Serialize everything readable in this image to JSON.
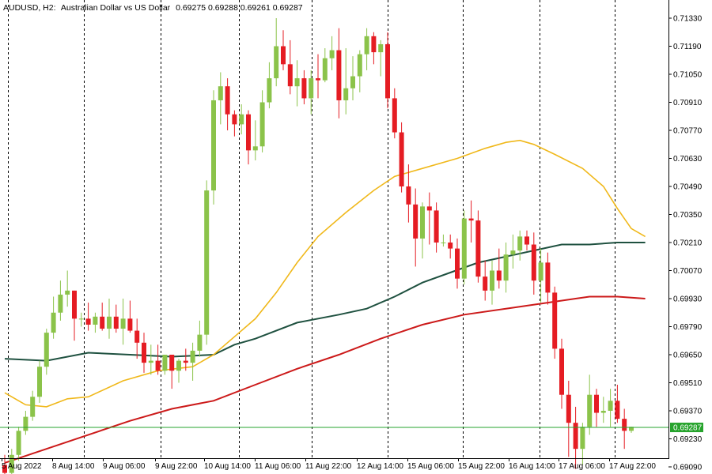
{
  "header": {
    "symbol": "AUDUSD, H2:",
    "description": "Australian Dollar vs US Dollar",
    "ohlc": "0.69275 0.69288 0.69261 0.69287"
  },
  "current_price": "0.69287",
  "colors": {
    "up": "#8bc34a",
    "down": "#e51c23",
    "ma_fast": "#f0b81a",
    "ma_mid": "#1f5140",
    "ma_slow": "#cc1a1a",
    "price_line": "#26a32c",
    "grid": "#000000"
  },
  "chart_data": {
    "type": "candlestick",
    "instrument": "AUDUSD",
    "timeframe": "H2",
    "ylim": [
      0.6902,
      0.7139
    ],
    "y_ticks": [
      "0.71330",
      "0.71190",
      "0.71050",
      "0.70910",
      "0.70770",
      "0.70630",
      "0.70490",
      "0.70350",
      "0.70210",
      "0.70070",
      "0.69930",
      "0.69790",
      "0.69650",
      "0.69510",
      "0.69370",
      "0.69230",
      "0.69090"
    ],
    "x_labels": [
      "5 Aug 2022",
      "8 Aug 14:00",
      "9 Aug 06:00",
      "9 Aug 22:00",
      "10 Aug 14:00",
      "11 Aug 06:00",
      "11 Aug 22:00",
      "12 Aug 14:00",
      "15 Aug 06:00",
      "15 Aug 22:00",
      "16 Aug 14:00",
      "17 Aug 06:00",
      "17 Aug 22:00"
    ],
    "candles": [
      [
        0.691,
        0.6915,
        0.6903,
        0.6906
      ],
      [
        0.6906,
        0.6918,
        0.6904,
        0.6915
      ],
      [
        0.6915,
        0.6929,
        0.6912,
        0.6927
      ],
      [
        0.6927,
        0.6937,
        0.6925,
        0.6934
      ],
      [
        0.6934,
        0.6947,
        0.6932,
        0.6944
      ],
      [
        0.6944,
        0.6962,
        0.6941,
        0.6959
      ],
      [
        0.6959,
        0.6978,
        0.6955,
        0.6976
      ],
      [
        0.6976,
        0.6994,
        0.6973,
        0.6986
      ],
      [
        0.6986,
        0.7002,
        0.6982,
        0.6995
      ],
      [
        0.6995,
        0.7007,
        0.6989,
        0.6997
      ],
      [
        0.6997,
        0.6997,
        0.6972,
        0.6983
      ],
      [
        0.6983,
        0.6986,
        0.6979,
        0.6983
      ],
      [
        0.6983,
        0.6991,
        0.6977,
        0.698
      ],
      [
        0.698,
        0.6986,
        0.6976,
        0.6984
      ],
      [
        0.6984,
        0.6991,
        0.6977,
        0.6978
      ],
      [
        0.6978,
        0.6993,
        0.6973,
        0.6984
      ],
      [
        0.6984,
        0.699,
        0.6976,
        0.6978
      ],
      [
        0.6978,
        0.6993,
        0.697,
        0.6983
      ],
      [
        0.6983,
        0.6992,
        0.6976,
        0.6977
      ],
      [
        0.6977,
        0.6983,
        0.6963,
        0.6971
      ],
      [
        0.6971,
        0.6976,
        0.6956,
        0.6961
      ],
      [
        0.6961,
        0.697,
        0.6955,
        0.6962
      ],
      [
        0.6962,
        0.697,
        0.6955,
        0.6957
      ],
      [
        0.6957,
        0.6965,
        0.6955,
        0.6965
      ],
      [
        0.6965,
        0.6965,
        0.6948,
        0.6957
      ],
      [
        0.6957,
        0.6963,
        0.6951,
        0.6962
      ],
      [
        0.6962,
        0.6968,
        0.6957,
        0.6961
      ],
      [
        0.6961,
        0.6971,
        0.6952,
        0.6967
      ],
      [
        0.6967,
        0.6982,
        0.6964,
        0.6975
      ],
      [
        0.6975,
        0.7052,
        0.697,
        0.7047
      ],
      [
        0.7047,
        0.7097,
        0.704,
        0.7092
      ],
      [
        0.7092,
        0.7106,
        0.708,
        0.7099
      ],
      [
        0.7099,
        0.7103,
        0.7077,
        0.7085
      ],
      [
        0.7085,
        0.7087,
        0.7074,
        0.708
      ],
      [
        0.708,
        0.709,
        0.7075,
        0.7085
      ],
      [
        0.7085,
        0.7087,
        0.706,
        0.7067
      ],
      [
        0.7067,
        0.7082,
        0.7062,
        0.7069
      ],
      [
        0.7069,
        0.7097,
        0.7066,
        0.7091
      ],
      [
        0.7091,
        0.7111,
        0.7088,
        0.7103
      ],
      [
        0.7103,
        0.7133,
        0.7099,
        0.7119
      ],
      [
        0.7119,
        0.7127,
        0.7107,
        0.711
      ],
      [
        0.711,
        0.7122,
        0.7095,
        0.7099
      ],
      [
        0.7099,
        0.7112,
        0.7089,
        0.7103
      ],
      [
        0.7103,
        0.7107,
        0.709,
        0.7093
      ],
      [
        0.7093,
        0.7107,
        0.7085,
        0.7103
      ],
      [
        0.7103,
        0.7115,
        0.7093,
        0.7102
      ],
      [
        0.7102,
        0.7118,
        0.7101,
        0.7113
      ],
      [
        0.7113,
        0.7124,
        0.7107,
        0.7117
      ],
      [
        0.7117,
        0.7128,
        0.7083,
        0.7092
      ],
      [
        0.7092,
        0.7118,
        0.7085,
        0.7098
      ],
      [
        0.7098,
        0.7114,
        0.7092,
        0.7104
      ],
      [
        0.7104,
        0.7117,
        0.7096,
        0.7115
      ],
      [
        0.7115,
        0.7128,
        0.7107,
        0.7124
      ],
      [
        0.7124,
        0.7126,
        0.711,
        0.7116
      ],
      [
        0.7116,
        0.7122,
        0.7104,
        0.712
      ],
      [
        0.712,
        0.7126,
        0.7088,
        0.7093
      ],
      [
        0.7093,
        0.7098,
        0.7073,
        0.7076
      ],
      [
        0.7076,
        0.7081,
        0.7046,
        0.7049
      ],
      [
        0.7049,
        0.706,
        0.7031,
        0.704
      ],
      [
        0.704,
        0.7048,
        0.7009,
        0.7023
      ],
      [
        0.7023,
        0.7041,
        0.7013,
        0.7039
      ],
      [
        0.7039,
        0.7046,
        0.702,
        0.7037
      ],
      [
        0.7037,
        0.7041,
        0.7016,
        0.7021
      ],
      [
        0.7021,
        0.7025,
        0.7019,
        0.7021
      ],
      [
        0.7021,
        0.7025,
        0.7013,
        0.7018
      ],
      [
        0.7018,
        0.7023,
        0.6998,
        0.7003
      ],
      [
        0.7003,
        0.7037,
        0.7,
        0.7033
      ],
      [
        0.7033,
        0.7042,
        0.7021,
        0.7032
      ],
      [
        0.7032,
        0.7037,
        0.7001,
        0.7004
      ],
      [
        0.7004,
        0.7012,
        0.6992,
        0.6997
      ],
      [
        0.6997,
        0.7012,
        0.699,
        0.7007
      ],
      [
        0.7007,
        0.7018,
        0.6998,
        0.7002
      ],
      [
        0.7002,
        0.7021,
        0.6996,
        0.7015
      ],
      [
        0.7015,
        0.7025,
        0.7008,
        0.7017
      ],
      [
        0.7017,
        0.7027,
        0.7012,
        0.7024
      ],
      [
        0.7024,
        0.7027,
        0.7017,
        0.702
      ],
      [
        0.702,
        0.7026,
        0.6995,
        0.7002
      ],
      [
        0.7002,
        0.7018,
        0.6991,
        0.7011
      ],
      [
        0.7011,
        0.7016,
        0.699,
        0.6996
      ],
      [
        0.6996,
        0.6999,
        0.6963,
        0.6968
      ],
      [
        0.6968,
        0.6973,
        0.6938,
        0.6945
      ],
      [
        0.6945,
        0.6952,
        0.6914,
        0.6931
      ],
      [
        0.6931,
        0.6939,
        0.6908,
        0.6918
      ],
      [
        0.6918,
        0.6931,
        0.691,
        0.6929
      ],
      [
        0.6929,
        0.6955,
        0.6925,
        0.6945
      ],
      [
        0.6945,
        0.6948,
        0.6929,
        0.6936
      ],
      [
        0.6936,
        0.6944,
        0.6931,
        0.6937
      ],
      [
        0.6937,
        0.6948,
        0.6929,
        0.6942
      ],
      [
        0.6942,
        0.695,
        0.6931,
        0.6933
      ],
      [
        0.6933,
        0.6938,
        0.6918,
        0.6927
      ],
      [
        0.6927,
        0.6929,
        0.6926,
        0.6929
      ]
    ],
    "series": [
      {
        "key": "ma_fast",
        "values": [
          [
            0,
            0.6946
          ],
          [
            3,
            0.694
          ],
          [
            6,
            0.6939
          ],
          [
            9,
            0.6943
          ],
          [
            12,
            0.6944
          ],
          [
            17,
            0.6952
          ],
          [
            22,
            0.6957
          ],
          [
            27,
            0.6959
          ],
          [
            30,
            0.6965
          ],
          [
            33,
            0.6974
          ],
          [
            36,
            0.6983
          ],
          [
            39,
            0.6996
          ],
          [
            42,
            0.7011
          ],
          [
            45,
            0.7024
          ],
          [
            49,
            0.7036
          ],
          [
            53,
            0.7047
          ],
          [
            56,
            0.7054
          ],
          [
            60,
            0.7058
          ],
          [
            65,
            0.7063
          ],
          [
            69,
            0.7068
          ],
          [
            72,
            0.7071
          ],
          [
            74,
            0.7072
          ],
          [
            76,
            0.707
          ],
          [
            79,
            0.7065
          ],
          [
            83,
            0.7058
          ],
          [
            86,
            0.7049
          ],
          [
            88,
            0.7038
          ],
          [
            90,
            0.7028
          ],
          [
            92,
            0.7024
          ]
        ]
      },
      {
        "key": "ma_mid",
        "values": [
          [
            0,
            0.6963
          ],
          [
            6,
            0.6962
          ],
          [
            12,
            0.6966
          ],
          [
            18,
            0.6965
          ],
          [
            24,
            0.6964
          ],
          [
            30,
            0.6965
          ],
          [
            33,
            0.697
          ],
          [
            36,
            0.6973
          ],
          [
            42,
            0.6981
          ],
          [
            48,
            0.6985
          ],
          [
            52,
            0.6988
          ],
          [
            56,
            0.6994
          ],
          [
            60,
            0.7001
          ],
          [
            64,
            0.7006
          ],
          [
            68,
            0.7011
          ],
          [
            72,
            0.7014
          ],
          [
            76,
            0.7017
          ],
          [
            80,
            0.702
          ],
          [
            84,
            0.702
          ],
          [
            88,
            0.7021
          ],
          [
            92,
            0.7021
          ]
        ]
      },
      {
        "key": "ma_slow",
        "values": [
          [
            0,
            0.6911
          ],
          [
            6,
            0.6918
          ],
          [
            12,
            0.6925
          ],
          [
            18,
            0.6932
          ],
          [
            24,
            0.6938
          ],
          [
            30,
            0.6942
          ],
          [
            36,
            0.695
          ],
          [
            42,
            0.6958
          ],
          [
            48,
            0.6965
          ],
          [
            54,
            0.6973
          ],
          [
            60,
            0.698
          ],
          [
            66,
            0.6985
          ],
          [
            72,
            0.6988
          ],
          [
            78,
            0.6991
          ],
          [
            82,
            0.6993
          ],
          [
            84,
            0.6994
          ],
          [
            88,
            0.6994
          ],
          [
            92,
            0.6993
          ]
        ]
      }
    ]
  }
}
